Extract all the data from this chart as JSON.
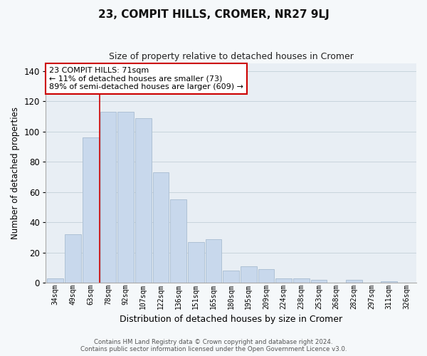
{
  "title": "23, COMPIT HILLS, CROMER, NR27 9LJ",
  "subtitle": "Size of property relative to detached houses in Cromer",
  "xlabel": "Distribution of detached houses by size in Cromer",
  "ylabel": "Number of detached properties",
  "categories": [
    "34sqm",
    "49sqm",
    "63sqm",
    "78sqm",
    "92sqm",
    "107sqm",
    "122sqm",
    "136sqm",
    "151sqm",
    "165sqm",
    "180sqm",
    "195sqm",
    "209sqm",
    "224sqm",
    "238sqm",
    "253sqm",
    "268sqm",
    "282sqm",
    "297sqm",
    "311sqm",
    "326sqm"
  ],
  "values": [
    3,
    32,
    96,
    113,
    113,
    109,
    73,
    55,
    27,
    29,
    8,
    11,
    9,
    3,
    3,
    2,
    0,
    2,
    0,
    1,
    0
  ],
  "bar_color": "#c8d8ec",
  "bar_edge_color": "#a8bcd0",
  "redline_index": 3,
  "ylim": [
    0,
    145
  ],
  "yticks": [
    0,
    20,
    40,
    60,
    80,
    100,
    120,
    140
  ],
  "annotation_title": "23 COMPIT HILLS: 71sqm",
  "annotation_line1": "← 11% of detached houses are smaller (73)",
  "annotation_line2": "89% of semi-detached houses are larger (609) →",
  "annotation_box_color": "#ffffff",
  "annotation_box_edge": "#cc0000",
  "footer1": "Contains HM Land Registry data © Crown copyright and database right 2024.",
  "footer2": "Contains public sector information licensed under the Open Government Licence v3.0.",
  "bg_color": "#f5f8fa",
  "plot_bg_color": "#e8eef4",
  "grid_color": "#c8d4dc"
}
